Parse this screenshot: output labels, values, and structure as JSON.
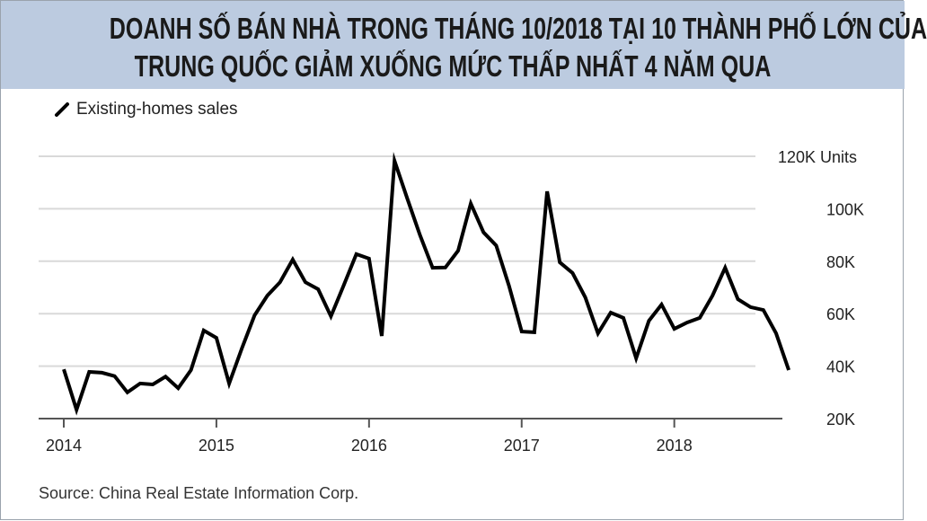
{
  "title_lines": [
    "DOANH SỐ BÁN NHÀ TRONG THÁNG 10/2018 TẠI 10 THÀNH PHỐ LỚN CỦA",
    "TRUNG QUỐC GIẢM XUỐNG MỨC THẤP NHẤT 4 NĂM QUA"
  ],
  "source": "Source: China Real Estate Information Corp.",
  "colors": {
    "banner": "#bccbe0",
    "line": "#000000",
    "grid": "#d9d9d9"
  },
  "chart_data": {
    "type": "line",
    "title": "DOANH SỐ BÁN NHÀ TRONG THÁNG 10/2018 TẠI 10 THÀNH PHỐ LỚN CỦA TRUNG QUỐC GIẢM XUỐNG MỨC THẤP NHẤT 4 NĂM QUA",
    "legend": [
      "Existing-homes sales"
    ],
    "legend_position": "top-left",
    "xlabel": "",
    "ylabel": "Units",
    "x_start": "2014-01",
    "x_interval": "month",
    "xticks": [
      "2014",
      "2015",
      "2016",
      "2017",
      "2018"
    ],
    "yticks": [
      "20K",
      "40K",
      "60K",
      "80K",
      "100K",
      "120K Units"
    ],
    "ylim": [
      20,
      120
    ],
    "grid": true,
    "series": [
      {
        "name": "Existing-homes sales",
        "unit": "thousand units",
        "values": [
          38.8,
          23.4,
          37.8,
          37.5,
          36.2,
          30,
          33.4,
          33,
          36,
          31.6,
          38.5,
          53.6,
          50.8,
          33.4,
          46.7,
          59.4,
          66.9,
          72,
          80.6,
          72,
          69.3,
          59,
          70.7,
          82.7,
          81,
          51.5,
          118.3,
          104,
          90,
          77.5,
          77.6,
          84,
          102,
          91,
          86,
          70.7,
          53.2,
          52.9,
          106.6,
          79.6,
          75.5,
          66.2,
          52.5,
          60.4,
          58.4,
          43,
          57.3,
          63.5,
          54.2,
          56.6,
          58.4,
          66.9,
          77.5,
          65.5,
          62.5,
          61.4,
          52.5,
          38.5
        ]
      }
    ]
  }
}
